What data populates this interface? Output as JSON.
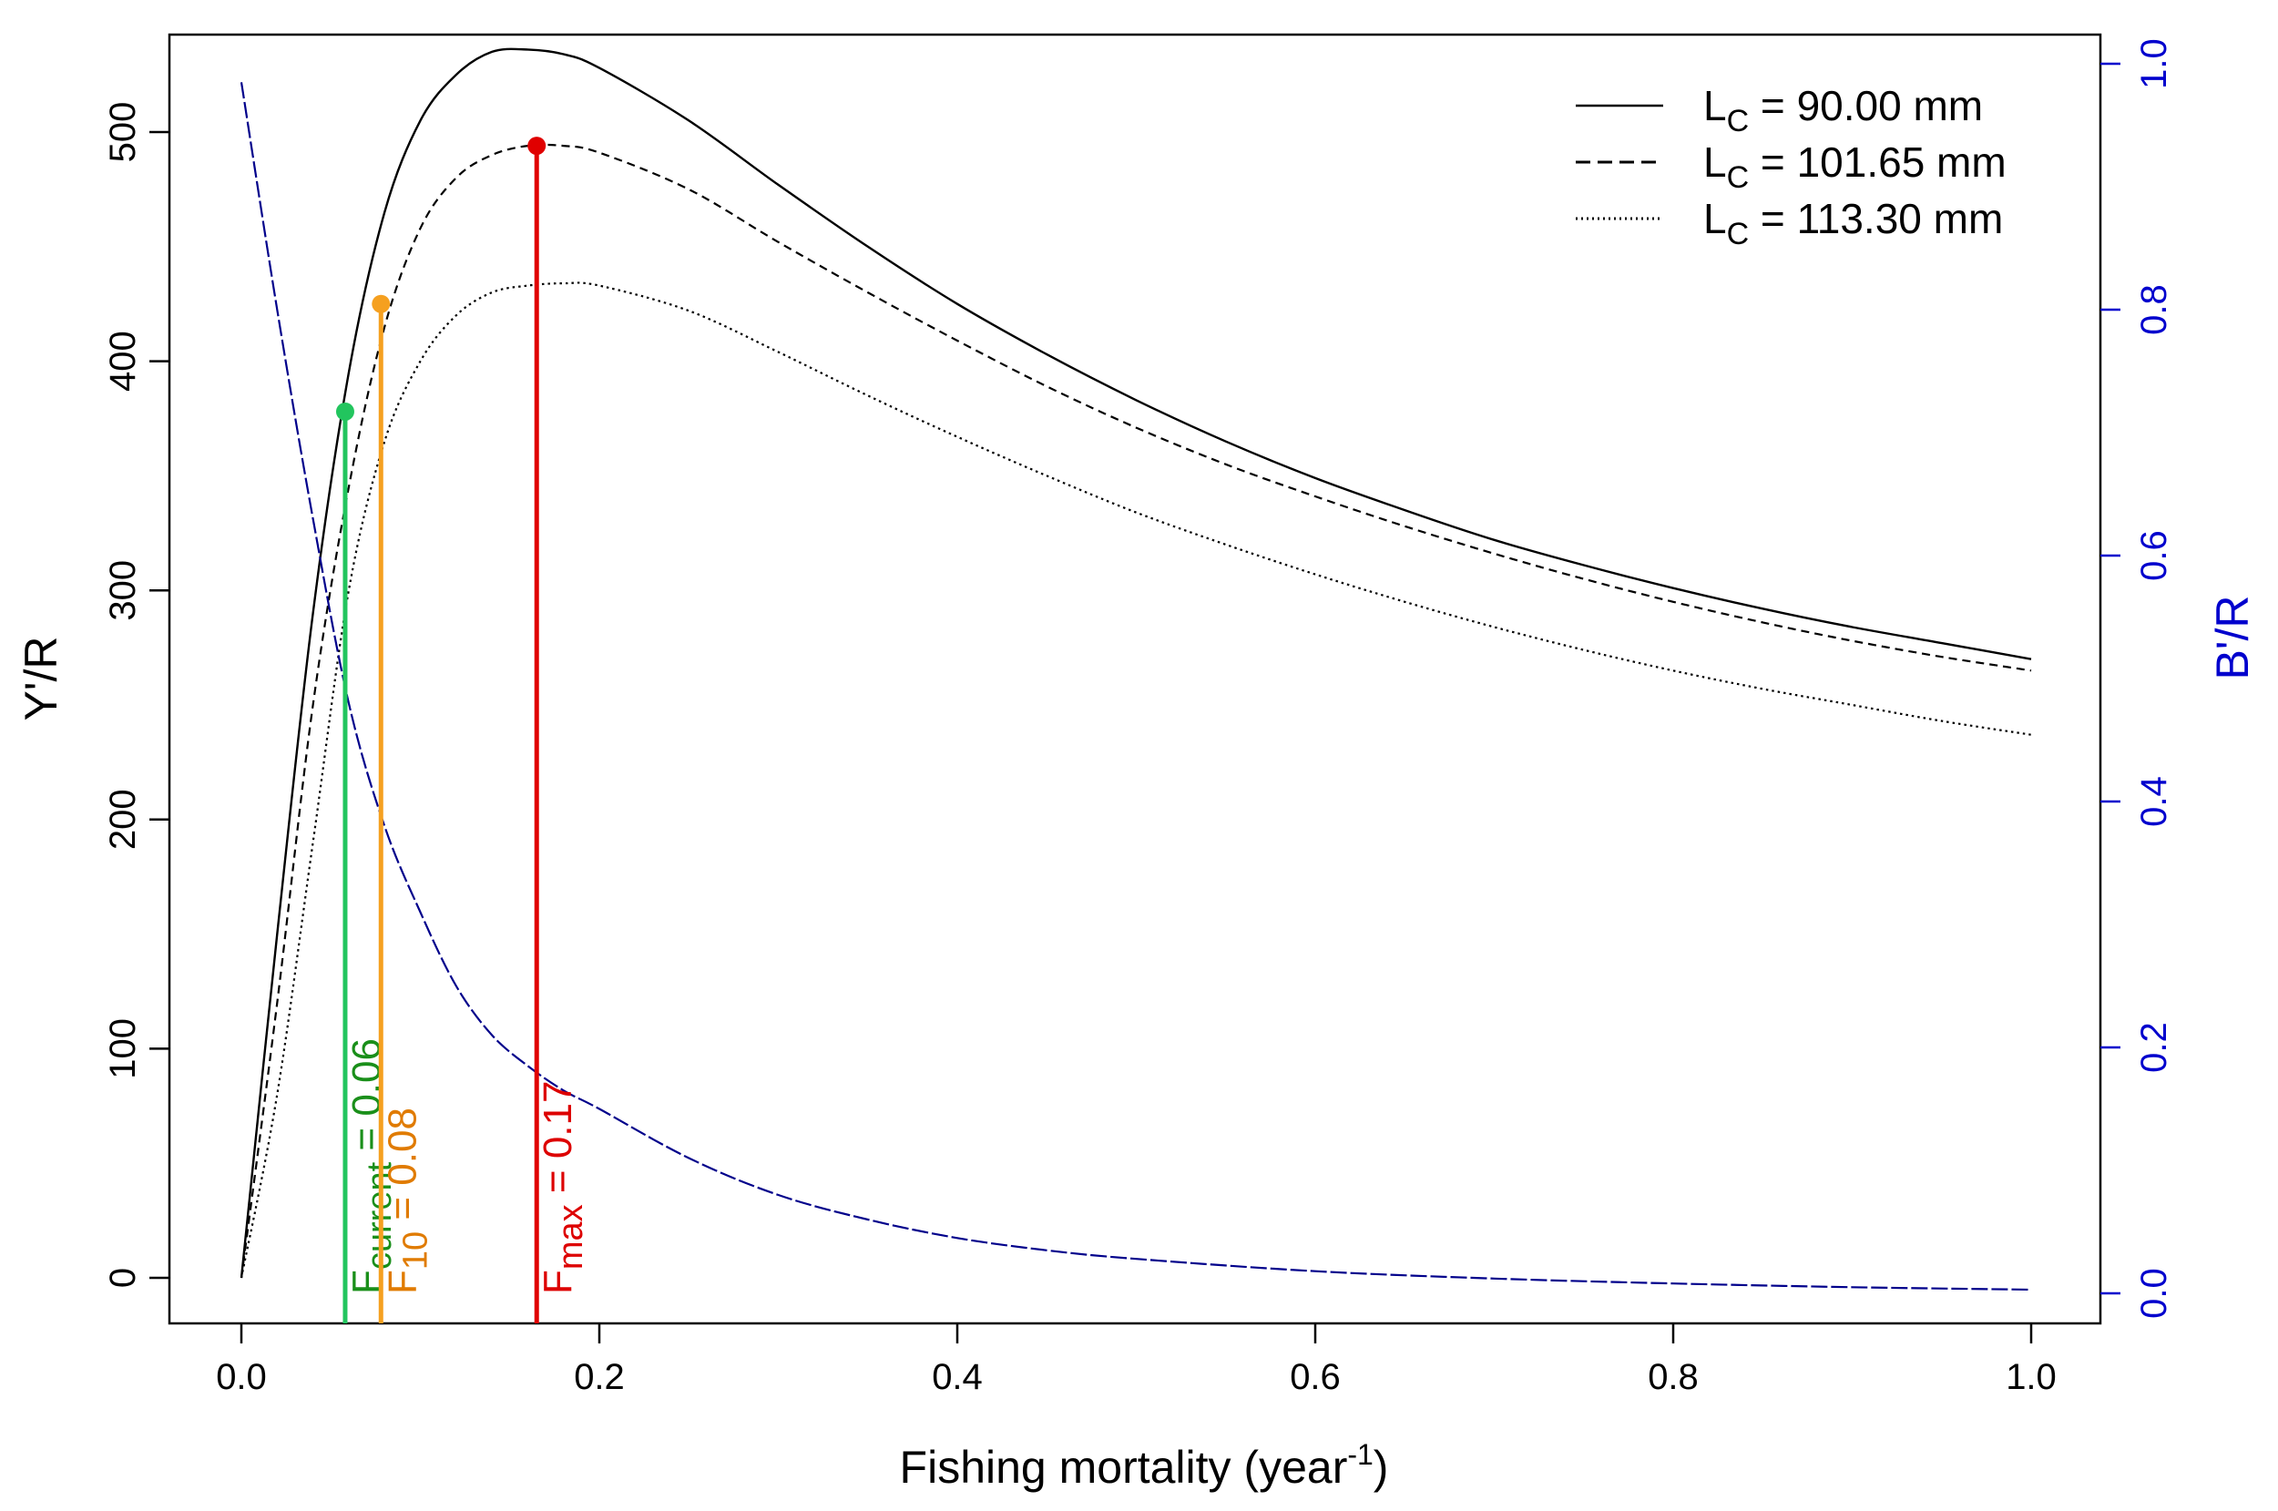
{
  "chart_data": {
    "type": "line",
    "xlabel": "Fishing mortality",
    "xlabel_unit": "year",
    "xlabel_unit_exp": "-1",
    "ylabel_left": "Y'/R",
    "ylabel_right": "B'/R",
    "xlim": [
      0.0,
      1.0
    ],
    "ylim_left": [
      0,
      540
    ],
    "ylim_right": [
      0.0,
      1.0
    ],
    "x_ticks": [
      "0.0",
      "0.2",
      "0.4",
      "0.6",
      "0.8",
      "1.0"
    ],
    "y_left_ticks": [
      "0",
      "100",
      "200",
      "300",
      "400",
      "500"
    ],
    "y_right_ticks": [
      "0.0",
      "0.2",
      "0.4",
      "0.6",
      "0.8",
      "1.0"
    ],
    "colors": {
      "yield_lines": "#000000",
      "biomass_line": "#00008b",
      "right_axis": "#0000cd",
      "f_current": "#22c55e",
      "f_current_text": "#1a8f1a",
      "f_10": "#f5a020",
      "f_10_text": "#e07b00",
      "f_max": "#e00000",
      "f_max_text": "#dd0000"
    },
    "legend": {
      "position": "top-right",
      "entries": [
        {
          "prefix": "L",
          "sub": "C",
          "text": " = 90.00 mm",
          "style": "solid"
        },
        {
          "prefix": "L",
          "sub": "C",
          "text": " = 101.65 mm",
          "style": "dashed"
        },
        {
          "prefix": "L",
          "sub": "C",
          "text": " = 113.30 mm",
          "style": "dotted"
        }
      ]
    },
    "series": [
      {
        "axis": "left",
        "style": "solid",
        "x": [
          0.0,
          0.02,
          0.04,
          0.06,
          0.08,
          0.1,
          0.12,
          0.14,
          0.16,
          0.18,
          0.2,
          0.25,
          0.3,
          0.35,
          0.4,
          0.45,
          0.5,
          0.55,
          0.6,
          0.65,
          0.7,
          0.75,
          0.8,
          0.85,
          0.9,
          0.95,
          1.0
        ],
        "y": [
          0,
          150,
          290,
          395,
          465,
          505,
          525,
          535,
          536,
          534,
          528,
          505,
          477,
          450,
          425,
          403,
          383,
          365,
          349,
          335,
          322,
          311,
          301,
          292,
          284,
          277,
          270
        ]
      },
      {
        "axis": "left",
        "style": "dashed",
        "x": [
          0.0,
          0.02,
          0.04,
          0.06,
          0.08,
          0.1,
          0.12,
          0.14,
          0.16,
          0.18,
          0.2,
          0.25,
          0.3,
          0.35,
          0.4,
          0.45,
          0.5,
          0.55,
          0.6,
          0.65,
          0.7,
          0.75,
          0.8,
          0.85,
          0.9,
          0.95,
          1.0
        ],
        "y": [
          0,
          120,
          250,
          345,
          415,
          458,
          480,
          490,
          494,
          494,
          491,
          475,
          452,
          430,
          409,
          389,
          371,
          355,
          341,
          328,
          316,
          305,
          295,
          286,
          278,
          271,
          265
        ]
      },
      {
        "axis": "left",
        "style": "dotted",
        "x": [
          0.0,
          0.02,
          0.04,
          0.06,
          0.08,
          0.1,
          0.12,
          0.14,
          0.16,
          0.18,
          0.2,
          0.25,
          0.3,
          0.35,
          0.4,
          0.45,
          0.5,
          0.55,
          0.6,
          0.65,
          0.7,
          0.75,
          0.8,
          0.85,
          0.9,
          0.95,
          1.0
        ],
        "y": [
          0,
          80,
          190,
          300,
          365,
          400,
          420,
          430,
          433,
          434,
          433,
          422,
          404,
          385,
          367,
          350,
          334,
          320,
          307,
          295,
          284,
          274,
          265,
          257,
          250,
          243,
          237
        ]
      },
      {
        "axis": "right",
        "style": "biomass",
        "x": [
          0.0,
          0.02,
          0.04,
          0.06,
          0.08,
          0.1,
          0.12,
          0.14,
          0.16,
          0.18,
          0.2,
          0.25,
          0.3,
          0.35,
          0.4,
          0.45,
          0.5,
          0.6,
          0.7,
          0.8,
          0.9,
          1.0
        ],
        "y": [
          0.985,
          0.8,
          0.63,
          0.48,
          0.38,
          0.31,
          0.25,
          0.21,
          0.185,
          0.165,
          0.15,
          0.11,
          0.08,
          0.06,
          0.045,
          0.035,
          0.028,
          0.018,
          0.012,
          0.008,
          0.005,
          0.003
        ]
      }
    ],
    "reference_lines": [
      {
        "id": "f-current",
        "x": 0.058,
        "y": 378,
        "label_main": "F",
        "label_sub": "current",
        "label_value": " = 0.06",
        "color": "f_current",
        "text_color": "f_current_text"
      },
      {
        "id": "f-10",
        "x": 0.078,
        "y": 425,
        "label_main": "F",
        "label_sub": "10",
        "label_value": " = 0.08",
        "color": "f_10",
        "text_color": "f_10_text"
      },
      {
        "id": "f-max",
        "x": 0.165,
        "y": 494,
        "label_main": "F",
        "label_sub": "max",
        "label_value": " = 0.17",
        "color": "f_max",
        "text_color": "f_max_text"
      }
    ]
  }
}
